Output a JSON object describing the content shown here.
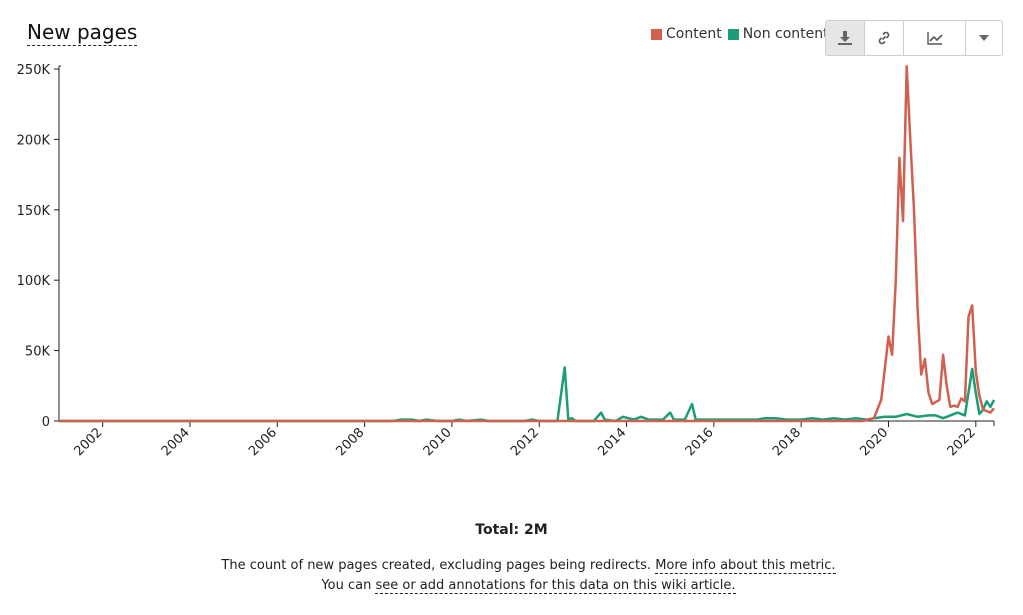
{
  "header": {
    "title": "New pages"
  },
  "legend": [
    {
      "label": "Content",
      "color": "#d0604f"
    },
    {
      "label": "Non content",
      "color": "#1b9e77"
    }
  ],
  "toolbar": {
    "buttons": [
      {
        "icon": "download-icon"
      },
      {
        "icon": "link-icon"
      },
      {
        "icon": "trend-chart-icon"
      },
      {
        "icon": "caret-down-icon"
      }
    ]
  },
  "chart_data": {
    "type": "line",
    "title": "New pages",
    "xlabel": "",
    "ylabel": "",
    "ylim": [
      0,
      250000
    ],
    "xlim": [
      "2001-01",
      "2022-06"
    ],
    "grid": false,
    "legend_position": "top-right",
    "y_ticks": [
      0,
      50000,
      100000,
      150000,
      200000,
      250000
    ],
    "y_tick_labels": [
      "0",
      "50K",
      "100K",
      "150K",
      "200K",
      "250K"
    ],
    "x_tick_labels": [
      "2002",
      "2004",
      "2006",
      "2008",
      "2010",
      "2012",
      "2014",
      "2016",
      "2018",
      "2020",
      "2022"
    ],
    "series": [
      {
        "name": "Content",
        "color": "#d0604f",
        "points": [
          [
            "2001-01",
            0
          ],
          [
            "2019-06",
            0
          ],
          [
            "2019-09",
            2000
          ],
          [
            "2019-11",
            15000
          ],
          [
            "2020-01",
            60000
          ],
          [
            "2020-02",
            47000
          ],
          [
            "2020-03",
            100000
          ],
          [
            "2020-04",
            187000
          ],
          [
            "2020-05",
            142000
          ],
          [
            "2020-06",
            252000
          ],
          [
            "2020-07",
            200000
          ],
          [
            "2020-08",
            150000
          ],
          [
            "2020-09",
            80000
          ],
          [
            "2020-10",
            33000
          ],
          [
            "2020-11",
            44000
          ],
          [
            "2020-12",
            20000
          ],
          [
            "2021-01",
            12000
          ],
          [
            "2021-03",
            15000
          ],
          [
            "2021-04",
            47000
          ],
          [
            "2021-05",
            25000
          ],
          [
            "2021-06",
            10000
          ],
          [
            "2021-07",
            11000
          ],
          [
            "2021-08",
            10000
          ],
          [
            "2021-09",
            16000
          ],
          [
            "2021-10",
            14000
          ],
          [
            "2021-11",
            74000
          ],
          [
            "2021-12",
            82000
          ],
          [
            "2022-01",
            35000
          ],
          [
            "2022-02",
            18000
          ],
          [
            "2022-03",
            8000
          ],
          [
            "2022-04",
            7000
          ],
          [
            "2022-05",
            6000
          ],
          [
            "2022-06",
            9000
          ]
        ]
      },
      {
        "name": "Non content",
        "color": "#1b9e77",
        "points": [
          [
            "2001-01",
            0
          ],
          [
            "2008-09",
            0
          ],
          [
            "2008-11",
            1000
          ],
          [
            "2009-02",
            1000
          ],
          [
            "2009-04",
            0
          ],
          [
            "2009-06",
            1000
          ],
          [
            "2009-09",
            0
          ],
          [
            "2010-01",
            0
          ],
          [
            "2010-03",
            1000
          ],
          [
            "2010-05",
            0
          ],
          [
            "2010-09",
            1000
          ],
          [
            "2010-11",
            0
          ],
          [
            "2011-09",
            0
          ],
          [
            "2011-11",
            1000
          ],
          [
            "2012-01",
            0
          ],
          [
            "2012-06",
            0
          ],
          [
            "2012-08",
            38000
          ],
          [
            "2012-09",
            1000
          ],
          [
            "2012-10",
            2000
          ],
          [
            "2012-11",
            0
          ],
          [
            "2013-04",
            0
          ],
          [
            "2013-06",
            6000
          ],
          [
            "2013-07",
            1000
          ],
          [
            "2013-10",
            0
          ],
          [
            "2013-12",
            3000
          ],
          [
            "2014-03",
            1000
          ],
          [
            "2014-05",
            3000
          ],
          [
            "2014-07",
            1000
          ],
          [
            "2014-11",
            1000
          ],
          [
            "2015-01",
            6000
          ],
          [
            "2015-02",
            1000
          ],
          [
            "2015-05",
            1000
          ],
          [
            "2015-07",
            12000
          ],
          [
            "2015-08",
            1000
          ],
          [
            "2016-02",
            1000
          ],
          [
            "2016-04",
            1000
          ],
          [
            "2017-01",
            1000
          ],
          [
            "2017-03",
            2000
          ],
          [
            "2017-06",
            2000
          ],
          [
            "2017-09",
            1000
          ],
          [
            "2018-01",
            1000
          ],
          [
            "2018-04",
            2000
          ],
          [
            "2018-07",
            1000
          ],
          [
            "2018-10",
            2000
          ],
          [
            "2019-01",
            1000
          ],
          [
            "2019-04",
            2000
          ],
          [
            "2019-07",
            1000
          ],
          [
            "2019-09",
            2000
          ],
          [
            "2019-12",
            3000
          ],
          [
            "2020-03",
            3000
          ],
          [
            "2020-06",
            5000
          ],
          [
            "2020-09",
            3000
          ],
          [
            "2020-12",
            4000
          ],
          [
            "2021-02",
            4000
          ],
          [
            "2021-04",
            2000
          ],
          [
            "2021-06",
            4000
          ],
          [
            "2021-08",
            6000
          ],
          [
            "2021-10",
            4000
          ],
          [
            "2021-12",
            37000
          ],
          [
            "2022-01",
            20000
          ],
          [
            "2022-02",
            5000
          ],
          [
            "2022-03",
            8000
          ],
          [
            "2022-04",
            14000
          ],
          [
            "2022-05",
            10000
          ],
          [
            "2022-06",
            15000
          ]
        ]
      }
    ]
  },
  "footer": {
    "total": "Total: 2M",
    "description": "The count of new pages created, excluding pages being redirects.",
    "more_info_link": "More info about this metric.",
    "annotations_prefix": "You can",
    "annotations_link": "see or add annotations for this data on this wiki article."
  }
}
